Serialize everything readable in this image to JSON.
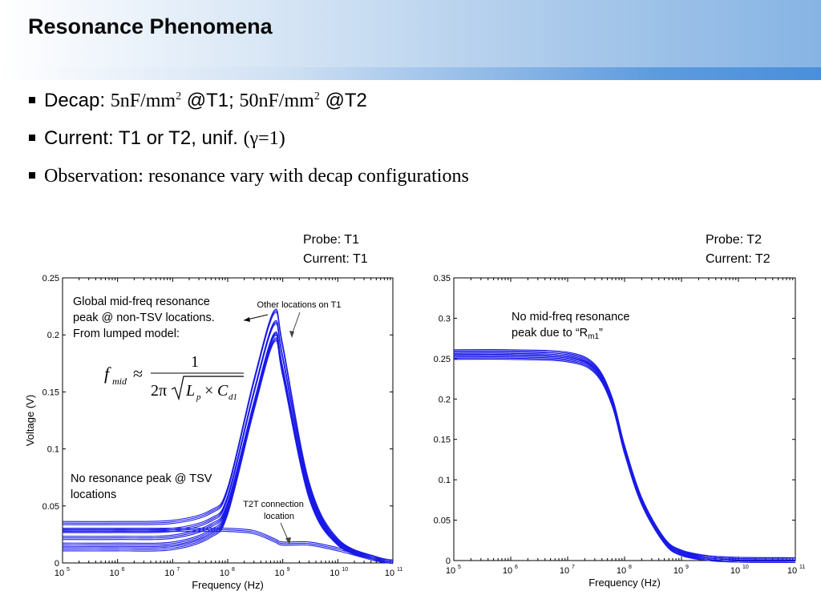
{
  "title": "Resonance Phenomena",
  "bullets": {
    "decap_label": "Decap:",
    "decap_v1": "5nF/mm",
    "decap_sup1": "2",
    "decap_t1": "@T1;",
    "decap_v2": "50nF/mm",
    "decap_sup2": "2",
    "decap_t2": "@T2",
    "current_text": "Current: T1 or T2, unif.",
    "current_gamma": "(γ=1)",
    "observation": "Observation: resonance vary with decap configurations"
  },
  "colors": {
    "curve": "#1a1ae6",
    "header_accent": "#4a8fdc"
  },
  "notes": {
    "left_global_1": "Global mid-freq resonance",
    "left_global_2": "peak @ non-TSV locations.",
    "left_global_3": "From lumped model:",
    "left_other": "Other locations on T1",
    "left_t2t_1": "T2T connection",
    "left_t2t_2": "location",
    "left_noresonance_1": "No resonance peak @ TSV",
    "left_noresonance_2": "locations",
    "right_note_1": "No mid-freq resonance",
    "right_note_2a": "peak due to “R",
    "right_note_2sub": "m1",
    "right_note_2b": "”"
  },
  "formula": {
    "lhs_f": "f",
    "lhs_sub": "mid",
    "approx": "≈",
    "numerator": "1",
    "denominator_prefix": "2π",
    "L": "L",
    "L_sub": "p",
    "times": "×",
    "C": "C",
    "C_sub": "d1"
  },
  "chart_data": [
    {
      "type": "line",
      "probe": "Probe: T1",
      "current": "Current: T1",
      "xlabel": "Frequency (Hz)",
      "ylabel": "Voltage (V)",
      "xscale": "log",
      "xlim": [
        100000,
        100000000000
      ],
      "ylim": [
        0,
        0.25
      ],
      "xticks": [
        "10^5",
        "10^6",
        "10^7",
        "10^8",
        "10^9",
        "10^10",
        "10^11"
      ],
      "yticks": [
        "0",
        "0.05",
        "0.1",
        "0.15",
        "0.2",
        "0.25"
      ],
      "series": [
        {
          "x": [
            100000,
            1000000,
            10000000,
            50000000,
            100000000,
            300000000,
            700000000,
            1000000000,
            3000000000,
            10000000000,
            50000000000,
            100000000000
          ],
          "values": [
            0.035,
            0.035,
            0.036,
            0.045,
            0.065,
            0.16,
            0.22,
            0.19,
            0.07,
            0.02,
            0.004,
            0.001
          ]
        },
        {
          "x": [
            100000,
            1000000,
            10000000,
            50000000,
            100000000,
            300000000,
            700000000,
            1000000000,
            3000000000,
            10000000000,
            50000000000,
            100000000000
          ],
          "values": [
            0.028,
            0.028,
            0.029,
            0.038,
            0.058,
            0.15,
            0.21,
            0.18,
            0.066,
            0.019,
            0.004,
            0.001
          ]
        },
        {
          "x": [
            100000,
            1000000,
            10000000,
            50000000,
            100000000,
            300000000,
            700000000,
            1000000000,
            3000000000,
            10000000000,
            50000000000,
            100000000000
          ],
          "values": [
            0.022,
            0.022,
            0.023,
            0.033,
            0.052,
            0.14,
            0.2,
            0.17,
            0.062,
            0.018,
            0.004,
            0.001
          ]
        },
        {
          "x": [
            100000,
            1000000,
            10000000,
            50000000,
            100000000,
            300000000,
            700000000,
            1000000000,
            3000000000,
            10000000000,
            50000000000,
            100000000000
          ],
          "values": [
            0.016,
            0.016,
            0.017,
            0.028,
            0.048,
            0.14,
            0.2,
            0.17,
            0.06,
            0.017,
            0.004,
            0.001
          ]
        },
        {
          "x": [
            100000,
            1000000,
            10000000,
            50000000,
            100000000,
            300000000,
            700000000,
            1000000000,
            3000000000,
            10000000000,
            50000000000,
            100000000000
          ],
          "values": [
            0.012,
            0.012,
            0.013,
            0.024,
            0.044,
            0.135,
            0.195,
            0.165,
            0.058,
            0.017,
            0.004,
            0.001
          ]
        },
        {
          "x": [
            100000,
            1000000,
            10000000,
            50000000,
            100000000,
            300000000,
            700000000,
            1000000000,
            3000000000,
            10000000000,
            50000000000,
            100000000000
          ],
          "values": [
            0.029,
            0.029,
            0.029,
            0.029,
            0.029,
            0.027,
            0.02,
            0.017,
            0.017,
            0.012,
            0.003,
            0.001
          ]
        }
      ]
    },
    {
      "type": "line",
      "probe": "Probe: T2",
      "current": "Current: T2",
      "xlabel": "Frequency (Hz)",
      "ylabel": "",
      "xscale": "log",
      "xlim": [
        100000,
        100000000000
      ],
      "ylim": [
        0,
        0.35
      ],
      "xticks": [
        "10^5",
        "10^6",
        "10^7",
        "10^8",
        "10^9",
        "10^10",
        "10^11"
      ],
      "yticks": [
        "0",
        "0.05",
        "0.1",
        "0.15",
        "0.2",
        "0.25",
        "0.3",
        "0.35"
      ],
      "series": [
        {
          "x": [
            100000,
            1000000,
            10000000,
            30000000,
            60000000,
            100000000,
            200000000,
            500000000,
            1000000000,
            3000000000,
            10000000000,
            100000000000
          ],
          "values": [
            0.258,
            0.258,
            0.255,
            0.24,
            0.2,
            0.14,
            0.075,
            0.025,
            0.01,
            0.003,
            0.001,
            0.0005
          ]
        },
        {
          "x": [
            100000,
            1000000,
            10000000,
            30000000,
            60000000,
            100000000,
            200000000,
            500000000,
            1000000000,
            3000000000,
            10000000000,
            100000000000
          ],
          "values": [
            0.252,
            0.252,
            0.249,
            0.235,
            0.195,
            0.135,
            0.072,
            0.024,
            0.009,
            0.003,
            0.001,
            0.0005
          ]
        }
      ]
    }
  ]
}
